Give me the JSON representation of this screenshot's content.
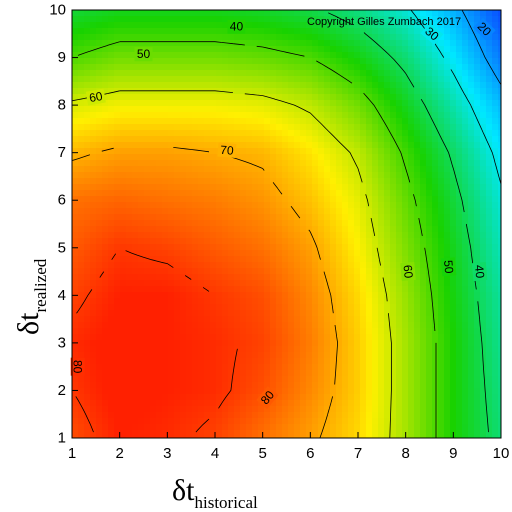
{
  "chart_data": {
    "type": "heatmap",
    "subtype": "filled-contour",
    "x": {
      "symbol": "δt",
      "subscript": "historical",
      "range": [
        1,
        10
      ],
      "ticks": [
        1,
        2,
        3,
        4,
        5,
        6,
        7,
        8,
        9,
        10
      ]
    },
    "y": {
      "symbol": "δt",
      "subscript": "realized",
      "range": [
        1,
        10
      ],
      "ticks": [
        1,
        2,
        3,
        4,
        5,
        6,
        7,
        8,
        9,
        10
      ]
    },
    "colormap": [
      "#0a44ff",
      "#00e8ff",
      "#18d200",
      "#fff000",
      "#ff2000"
    ],
    "copyright": "Copyright Gilles Zumbach 2017",
    "z_grid": {
      "x": [
        1,
        2,
        3,
        4,
        5,
        6,
        7,
        8,
        9,
        10
      ],
      "y": [
        1,
        2,
        3,
        4,
        5,
        6,
        7,
        8,
        9,
        10
      ],
      "values_by_y": [
        [
          78,
          82,
          81,
          79,
          75,
          71,
          66,
          57,
          46,
          38
        ],
        [
          80,
          83,
          82,
          81,
          78,
          73,
          67,
          57,
          46,
          37
        ],
        [
          81,
          83,
          82,
          81,
          79,
          74,
          67,
          57,
          46,
          36
        ],
        [
          79,
          82,
          82,
          80,
          78,
          73,
          66,
          56,
          45,
          35
        ],
        [
          77,
          80,
          79,
          77,
          75,
          71,
          64,
          54,
          44,
          33
        ],
        [
          75,
          76,
          75,
          74,
          72,
          68,
          62,
          52,
          42,
          31
        ],
        [
          69,
          71,
          71,
          70,
          69,
          65,
          59,
          49,
          39,
          28
        ],
        [
          61,
          63,
          63,
          63,
          62,
          59,
          53,
          44,
          34,
          23
        ],
        [
          50,
          53,
          53,
          53,
          52,
          50,
          45,
          38,
          28,
          16
        ],
        [
          42,
          44,
          44,
          44,
          43,
          41,
          37,
          31,
          22,
          11
        ]
      ]
    },
    "contour_labels": [
      {
        "text": "40",
        "x": 4.45,
        "y": 9.65,
        "angle": 0
      },
      {
        "text": "30",
        "x": 8.55,
        "y": 9.5,
        "angle": 40
      },
      {
        "text": "20",
        "x": 9.65,
        "y": 9.6,
        "angle": 45
      },
      {
        "text": "50",
        "x": 2.5,
        "y": 9.07,
        "angle": 0
      },
      {
        "text": "60",
        "x": 1.5,
        "y": 8.17,
        "angle": -10
      },
      {
        "text": "70",
        "x": 4.25,
        "y": 7.05,
        "angle": 5
      },
      {
        "text": "60",
        "x": 8.05,
        "y": 4.5,
        "angle": 85
      },
      {
        "text": "50",
        "x": 8.9,
        "y": 4.6,
        "angle": 85
      },
      {
        "text": "40",
        "x": 9.55,
        "y": 4.5,
        "angle": 85
      },
      {
        "text": "80",
        "x": 1.12,
        "y": 2.5,
        "angle": 90
      },
      {
        "text": "80",
        "x": 5.1,
        "y": 1.85,
        "angle": -50
      }
    ],
    "contour_levels": [
      20,
      30,
      40,
      50,
      60,
      70,
      80
    ]
  }
}
